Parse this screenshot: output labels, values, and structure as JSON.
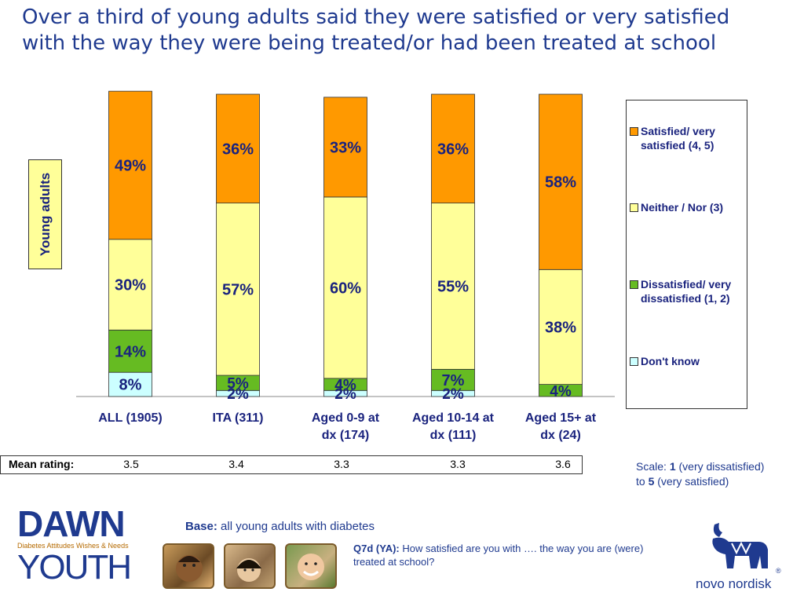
{
  "title": "Over a third of young adults said they were satisfied or very satisfied with the way they were being treated/or had been treated at school",
  "side_label": "Young adults",
  "chart_data": {
    "type": "bar",
    "stacked": true,
    "orientation": "vertical",
    "ylim": [
      0,
      100
    ],
    "categories": [
      "ALL (1905)",
      "ITA (311)",
      "Aged 0-9 at dx (174)",
      "Aged 10-14 at dx (111)",
      "Aged 15+ at dx (24)"
    ],
    "series": [
      {
        "name": "Don't know",
        "color": "#ccffff",
        "values": [
          8,
          2,
          2,
          2,
          0
        ]
      },
      {
        "name": "Dissatisfied/ very dissatisfied (1, 2)",
        "color": "#66bb22",
        "values": [
          14,
          5,
          4,
          7,
          4
        ]
      },
      {
        "name": "Neither / Nor (3)",
        "color": "#ffff99",
        "values": [
          30,
          57,
          60,
          55,
          38
        ]
      },
      {
        "name": "Satisfied/ very satisfied (4, 5)",
        "color": "#ff9900",
        "values": [
          49,
          36,
          33,
          36,
          58
        ]
      }
    ],
    "data_labels": [
      [
        "8%",
        "2%",
        "2%",
        "2%",
        ""
      ],
      [
        "14%",
        "5%",
        "4%",
        "7%",
        "4%"
      ],
      [
        "30%",
        "57%",
        "60%",
        "55%",
        "38%"
      ],
      [
        "49%",
        "36%",
        "33%",
        "36%",
        "58%"
      ]
    ],
    "legend_position": "right",
    "grid": false
  },
  "mean_rating": {
    "label": "Mean rating:",
    "values": [
      "3.5",
      "3.4",
      "3.3",
      "3.3",
      "3.6"
    ]
  },
  "scale_note": {
    "prefix": "Scale: ",
    "low": "1",
    "low_text": " (very dissatisfied)",
    "to": "to ",
    "high": "5",
    "high_text": " (very satisfied)"
  },
  "logo": {
    "dawn": "DAWN",
    "subtitle": "Diabetes Attitudes Wishes & Needs",
    "youth": "YOUTH"
  },
  "base_note": {
    "label": "Base:",
    "text": " all young adults with diabetes"
  },
  "question": {
    "label": "Q7d (YA):",
    "text": " How satisfied are you with …. the way you are (were) treated at school?"
  },
  "brand": {
    "name": "novo nordisk",
    "reg": "®"
  },
  "colors": {
    "title": "#1f3a8f",
    "label": "#1a237e",
    "satisfied": "#ff9900",
    "neither": "#ffff99",
    "dissatisfied": "#66bb22",
    "dont_know": "#ccffff"
  },
  "icons": [
    "photo-child-1",
    "photo-child-2",
    "photo-child-3",
    "novo-bull-logo"
  ]
}
